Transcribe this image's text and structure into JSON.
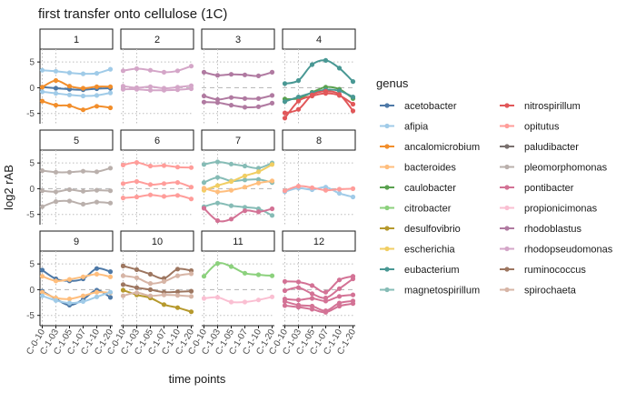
{
  "chart_data": {
    "type": "line",
    "title": "first transfer onto cellulose (1C)",
    "xlabel": "time points",
    "ylabel": "log2 rAB",
    "x_categories": [
      "C-0-10",
      "C-1-03",
      "C-1-05",
      "C-1-07",
      "C-1-10",
      "C-1-20"
    ],
    "y_ticks": [
      -5,
      0,
      5
    ],
    "ylim": [
      -7,
      7.5
    ],
    "grid": "dotted vertical at C-0-10 and C-1-03; dotted horizontal at -5 and 5; dashed horizontal at 0",
    "legend": {
      "title": "genus",
      "position": "right",
      "entries": [
        {
          "name": "acetobacter",
          "color": "#4e79a7"
        },
        {
          "name": "afipia",
          "color": "#a0cbe8"
        },
        {
          "name": "ancalomicrobium",
          "color": "#f28e2b"
        },
        {
          "name": "bacteroides",
          "color": "#ffbe7d"
        },
        {
          "name": "caulobacter",
          "color": "#59a14f"
        },
        {
          "name": "citrobacter",
          "color": "#8cd17d"
        },
        {
          "name": "desulfovibrio",
          "color": "#b6992d"
        },
        {
          "name": "escherichia",
          "color": "#f1ce63"
        },
        {
          "name": "eubacterium",
          "color": "#499894"
        },
        {
          "name": "magnetospirillum",
          "color": "#86bcb6"
        },
        {
          "name": "nitrospirillum",
          "color": "#e15759"
        },
        {
          "name": "opitutus",
          "color": "#ff9d9a"
        },
        {
          "name": "paludibacter",
          "color": "#79706e"
        },
        {
          "name": "pleomorphomonas",
          "color": "#bab0ac"
        },
        {
          "name": "pontibacter",
          "color": "#d37295"
        },
        {
          "name": "propionicimonas",
          "color": "#fabfd2"
        },
        {
          "name": "rhodoblastus",
          "color": "#b07aa1"
        },
        {
          "name": "rhodopseudomonas",
          "color": "#d4a6c8"
        },
        {
          "name": "ruminococcus",
          "color": "#9d7660"
        },
        {
          "name": "spirochaeta",
          "color": "#d7b5a6"
        }
      ]
    },
    "panels": [
      {
        "label": "1",
        "series": [
          {
            "genus": "afipia",
            "values": [
              3.4,
              3.2,
              2.9,
              2.7,
              2.8,
              3.6
            ]
          },
          {
            "genus": "afipia",
            "values": [
              -0.8,
              -1.1,
              -1.4,
              -1.6,
              -1.5,
              -1.0
            ]
          },
          {
            "genus": "acetobacter",
            "values": [
              0.1,
              -0.1,
              -0.3,
              -0.4,
              -0.2,
              -0.1
            ]
          },
          {
            "genus": "ancalomicrobium",
            "values": [
              0.1,
              1.4,
              0.3,
              -0.1,
              0.2,
              0.2
            ]
          },
          {
            "genus": "ancalomicrobium",
            "values": [
              -2.6,
              -3.4,
              -3.5,
              -4.3,
              -3.6,
              -3.9
            ]
          }
        ]
      },
      {
        "label": "2",
        "series": [
          {
            "genus": "rhodopseudomonas",
            "values": [
              3.3,
              3.7,
              3.4,
              3.0,
              3.3,
              4.2
            ]
          },
          {
            "genus": "rhodopseudomonas",
            "values": [
              0.3,
              0.0,
              0.2,
              -0.1,
              0.1,
              0.4
            ]
          },
          {
            "genus": "rhodopseudomonas",
            "values": [
              -0.3,
              -0.3,
              -0.5,
              -0.5,
              -0.4,
              -0.2
            ]
          }
        ]
      },
      {
        "label": "3",
        "series": [
          {
            "genus": "rhodoblastus",
            "values": [
              3.0,
              2.4,
              2.6,
              2.5,
              2.3,
              3.0
            ]
          },
          {
            "genus": "rhodoblastus",
            "values": [
              -1.6,
              -2.3,
              -1.9,
              -2.1,
              -2.1,
              -1.5
            ]
          },
          {
            "genus": "rhodoblastus",
            "values": [
              -2.8,
              -2.9,
              -3.4,
              -3.8,
              -3.7,
              -3.0
            ]
          }
        ]
      },
      {
        "label": "4",
        "series": [
          {
            "genus": "eubacterium",
            "values": [
              0.8,
              1.4,
              4.5,
              5.3,
              3.8,
              1.2
            ]
          },
          {
            "genus": "caulobacter",
            "values": [
              -2.2,
              -2.1,
              -0.9,
              0.1,
              -0.3,
              -2.1
            ]
          },
          {
            "genus": "eubacterium",
            "values": [
              -2.7,
              -1.8,
              -1.0,
              -0.4,
              -0.6,
              -1.8
            ]
          },
          {
            "genus": "nitrospirillum",
            "values": [
              -4.9,
              -4.2,
              -1.4,
              -0.7,
              -1.3,
              -4.5
            ]
          },
          {
            "genus": "nitrospirillum",
            "values": [
              -5.9,
              -2.6,
              -1.6,
              -1.1,
              -1.5,
              -3.2
            ]
          }
        ]
      },
      {
        "label": "5",
        "series": [
          {
            "genus": "pleomorphomonas",
            "values": [
              3.5,
              3.2,
              3.2,
              3.4,
              3.3,
              4.0
            ]
          },
          {
            "genus": "pleomorphomonas",
            "values": [
              -0.4,
              -0.6,
              -0.2,
              -0.5,
              -0.3,
              -0.4
            ]
          },
          {
            "genus": "pleomorphomonas",
            "values": [
              -3.5,
              -2.5,
              -2.4,
              -3.0,
              -2.6,
              -2.8
            ]
          }
        ]
      },
      {
        "label": "6",
        "series": [
          {
            "genus": "opitutus",
            "values": [
              4.6,
              5.1,
              4.4,
              4.5,
              4.2,
              4.1
            ]
          },
          {
            "genus": "opitutus",
            "values": [
              1.0,
              1.4,
              0.8,
              1.0,
              1.2,
              0.3
            ]
          },
          {
            "genus": "opitutus",
            "values": [
              -1.8,
              -1.6,
              -1.2,
              -1.5,
              -1.3,
              -2.0
            ]
          }
        ]
      },
      {
        "label": "7",
        "series": [
          {
            "genus": "magnetospirillum",
            "values": [
              4.7,
              5.2,
              4.8,
              4.4,
              4.0,
              5.0
            ]
          },
          {
            "genus": "magnetospirillum",
            "values": [
              1.2,
              2.2,
              1.5,
              1.7,
              1.8,
              1.2
            ]
          },
          {
            "genus": "escherichia",
            "values": [
              -0.3,
              0.6,
              1.4,
              2.5,
              3.3,
              4.7
            ]
          },
          {
            "genus": "bacteroides",
            "values": [
              0.1,
              -0.6,
              -0.3,
              0.3,
              1.1,
              1.5
            ]
          },
          {
            "genus": "magnetospirillum",
            "values": [
              -3.5,
              -2.8,
              -3.3,
              -3.6,
              -3.9,
              -5.2
            ]
          },
          {
            "genus": "pontibacter",
            "values": [
              -3.8,
              -6.2,
              -5.9,
              -4.3,
              -4.5,
              -3.9
            ]
          }
        ]
      },
      {
        "label": "8",
        "series": [
          {
            "genus": "afipia",
            "values": [
              -0.6,
              0.1,
              -0.2,
              0.3,
              -0.9,
              -1.6
            ]
          },
          {
            "genus": "opitutus",
            "values": [
              -0.4,
              0.5,
              0.2,
              -0.3,
              -0.1,
              0.0
            ]
          }
        ]
      },
      {
        "label": "9",
        "series": [
          {
            "genus": "acetobacter",
            "values": [
              3.8,
              2.1,
              1.7,
              2.1,
              4.1,
              3.5
            ]
          },
          {
            "genus": "bacteroides",
            "values": [
              2.6,
              1.7,
              2.0,
              2.5,
              3.0,
              2.5
            ]
          },
          {
            "genus": "acetobacter",
            "values": [
              -0.3,
              -1.8,
              -3.0,
              -1.9,
              -0.1,
              -1.5
            ]
          },
          {
            "genus": "bacteroides",
            "values": [
              -0.5,
              -1.6,
              -1.8,
              -1.2,
              -0.5,
              -0.6
            ]
          },
          {
            "genus": "afipia",
            "values": [
              -1.2,
              -2.1,
              -2.6,
              -2.3,
              -1.4,
              -0.5
            ]
          }
        ]
      },
      {
        "label": "10",
        "series": [
          {
            "genus": "ruminococcus",
            "values": [
              4.6,
              3.9,
              3.0,
              2.2,
              4.0,
              3.7
            ]
          },
          {
            "genus": "spirochaeta",
            "values": [
              2.7,
              2.3,
              1.2,
              1.6,
              2.7,
              3.1
            ]
          },
          {
            "genus": "ruminococcus",
            "values": [
              1.0,
              0.4,
              0.0,
              -0.5,
              -0.4,
              -0.3
            ]
          },
          {
            "genus": "desulfovibrio",
            "values": [
              -0.1,
              -1.0,
              -1.6,
              -2.9,
              -3.5,
              -4.3
            ]
          },
          {
            "genus": "spirochaeta",
            "values": [
              -1.2,
              -0.6,
              -1.2,
              -1.0,
              -1.1,
              -1.3
            ]
          }
        ]
      },
      {
        "label": "11",
        "series": [
          {
            "genus": "citrobacter",
            "values": [
              2.6,
              5.1,
              4.5,
              3.2,
              2.9,
              2.7
            ]
          },
          {
            "genus": "propionicimonas",
            "values": [
              -1.7,
              -1.5,
              -2.4,
              -2.4,
              -2.0,
              -1.4
            ]
          }
        ]
      },
      {
        "label": "12",
        "series": [
          {
            "genus": "pontibacter",
            "values": [
              1.6,
              1.5,
              0.8,
              -0.5,
              1.9,
              2.6
            ]
          },
          {
            "genus": "pontibacter",
            "values": [
              -0.2,
              0.4,
              -0.8,
              -1.6,
              0.2,
              2.1
            ]
          },
          {
            "genus": "pontibacter",
            "values": [
              -1.8,
              -2.0,
              -1.7,
              -2.2,
              -1.3,
              -1.0
            ]
          },
          {
            "genus": "pontibacter",
            "values": [
              -2.3,
              -3.0,
              -3.2,
              -4.1,
              -2.6,
              -2.2
            ]
          },
          {
            "genus": "pontibacter",
            "values": [
              -3.1,
              -3.4,
              -3.8,
              -4.4,
              -3.2,
              -2.7
            ]
          }
        ]
      }
    ]
  }
}
